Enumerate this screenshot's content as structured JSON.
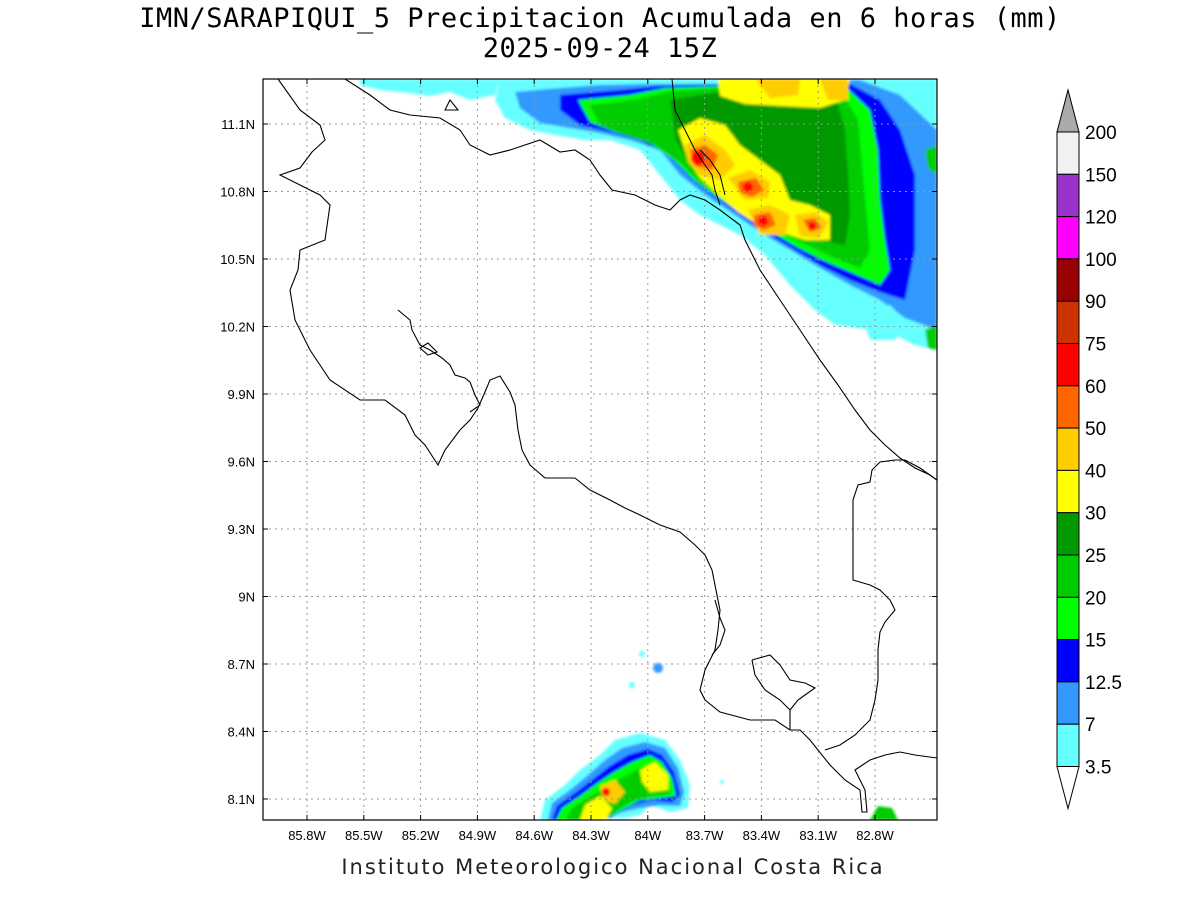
{
  "title_line1": "IMN/SARAPIQUI_5 Precipitacion Acumulada en 6 horas (mm)",
  "title_line2": "2025-09-24 15Z",
  "credit": "Instituto Meteorologico Nacional Costa Rica",
  "lat_ticks": [
    "11.1N",
    "10.8N",
    "10.5N",
    "10.2N",
    "9.9N",
    "9.6N",
    "9.3N",
    "9N",
    "8.7N",
    "8.4N",
    "8.1N"
  ],
  "lon_ticks": [
    "85.8W",
    "85.5W",
    "85.2W",
    "84.9W",
    "84.6W",
    "84.3W",
    "84W",
    "83.7W",
    "83.4W",
    "83.1W",
    "82.8W"
  ],
  "colorbar": {
    "labels": [
      "200",
      "150",
      "120",
      "100",
      "90",
      "75",
      "60",
      "50",
      "40",
      "30",
      "25",
      "20",
      "15",
      "12.5",
      "7",
      "3.5"
    ],
    "colors": [
      "#f2f2f2",
      "#9933cc",
      "#ff00ff",
      "#990000",
      "#cc3300",
      "#ff0000",
      "#ff6600",
      "#ffcc00",
      "#ffff00",
      "#009900",
      "#00cc00",
      "#00ff00",
      "#0000ff",
      "#3399ff",
      "#66ffff"
    ],
    "over_color": "#aaaaaa",
    "under_color": "#ffffff"
  }
}
